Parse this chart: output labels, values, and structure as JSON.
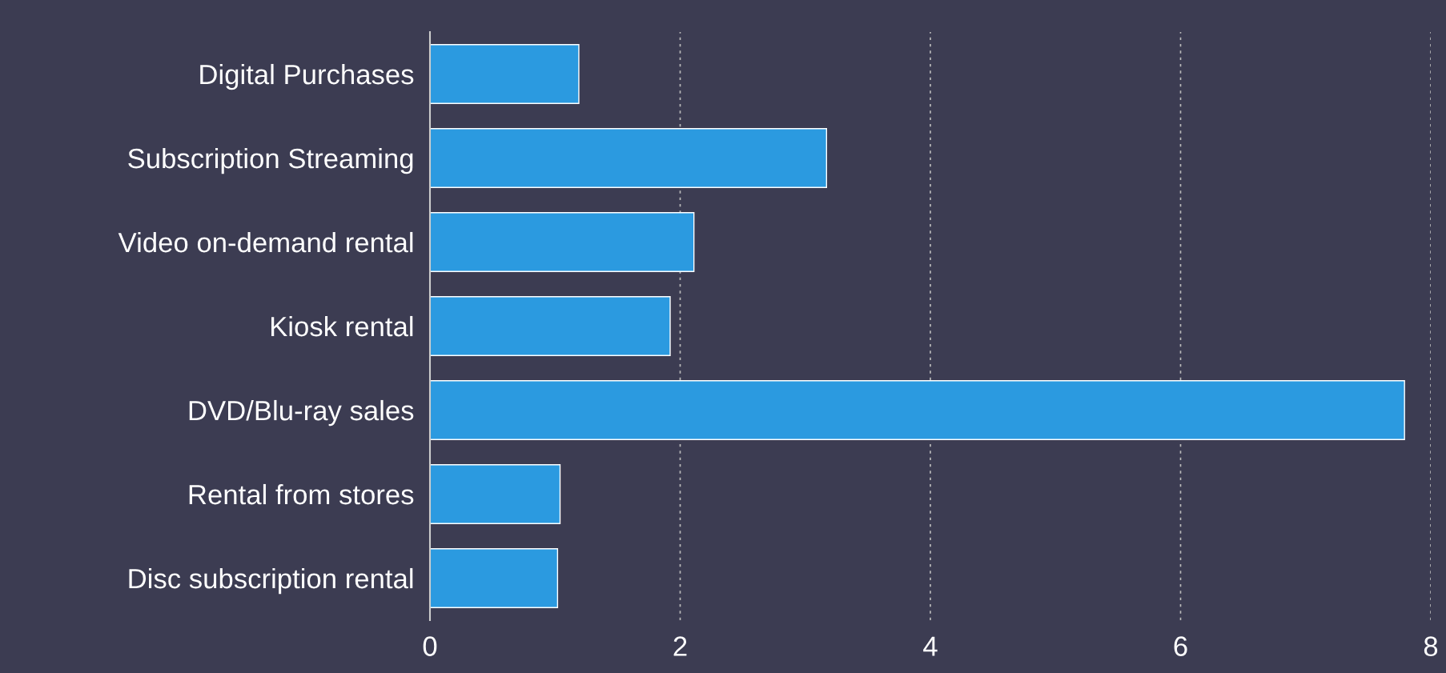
{
  "chart_data": {
    "type": "bar",
    "orientation": "horizontal",
    "categories": [
      "Digital Purchases",
      "Subscription Streaming",
      "Video on-demand rental",
      "Kiosk rental",
      "DVD/Blu-ray sales",
      "Rental from stores",
      "Disc subscription rental"
    ],
    "values": [
      1.19,
      3.17,
      2.11,
      1.92,
      7.79,
      1.04,
      1.02
    ],
    "color": "#2b9ae0",
    "xlim": [
      0,
      8
    ],
    "xticks": [
      0,
      2,
      4,
      6,
      8
    ],
    "grid": "x"
  }
}
